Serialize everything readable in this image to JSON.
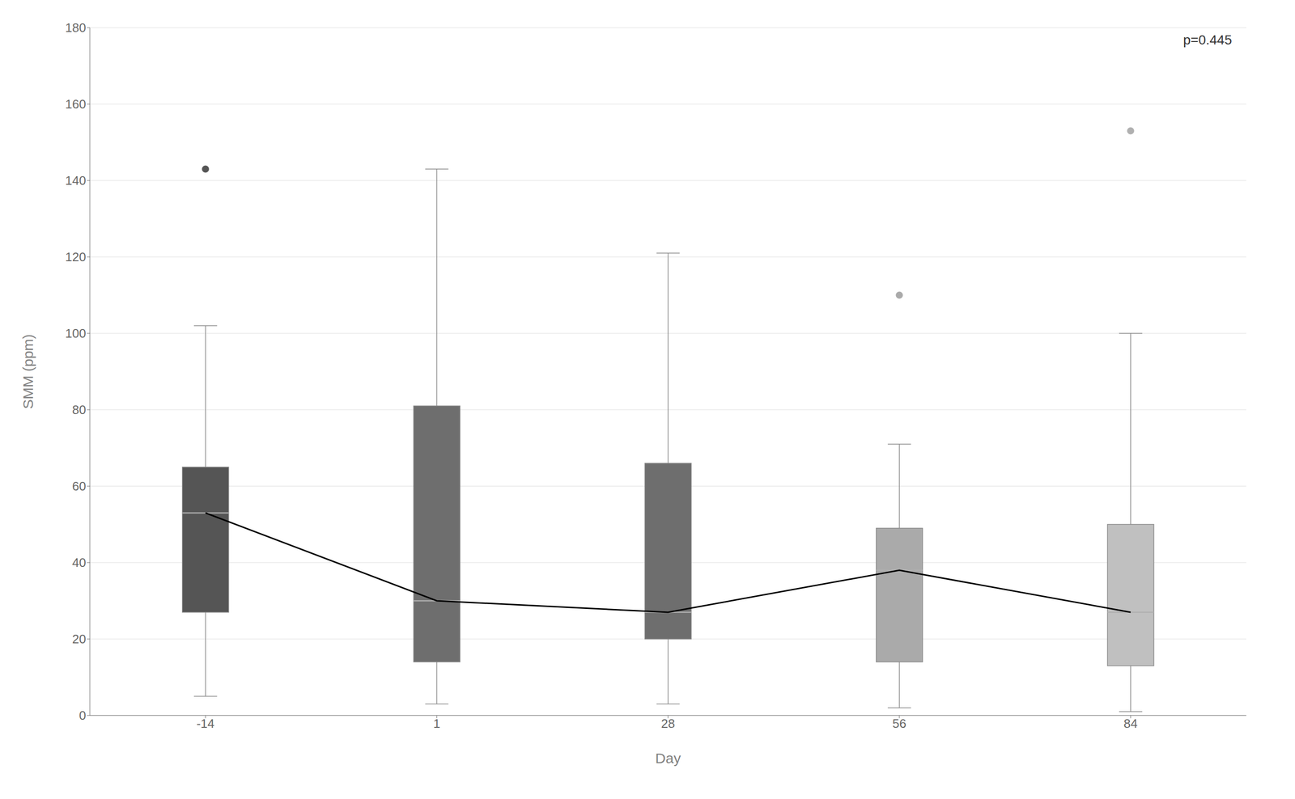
{
  "chart_data": {
    "type": "box",
    "xlabel": "Day",
    "ylabel": "SMM (ppm)",
    "annotation": "p=0.445",
    "categories": [
      "-14",
      "1",
      "28",
      "56",
      "84"
    ],
    "q1": [
      27,
      14,
      20,
      14,
      13
    ],
    "median": [
      53,
      30,
      27,
      38,
      27
    ],
    "q3": [
      65,
      81,
      66,
      49,
      50
    ],
    "whisker_low": [
      5,
      3,
      3,
      2,
      1
    ],
    "whisker_high": [
      102,
      143,
      121,
      71,
      100
    ],
    "outliers": [
      [
        143
      ],
      [],
      [],
      [
        110
      ],
      [
        153
      ]
    ],
    "colors": [
      "#555555",
      "#6e6e6e",
      "#6e6e6e",
      "#aaaaaa",
      "#c0c0c0"
    ],
    "outlier_colors": [
      "#555555",
      "#777777",
      "#888888",
      "#aaaaaa",
      "#b0b0b0"
    ],
    "mean_line": [
      53,
      30,
      27,
      38,
      27
    ],
    "mean_line_color": "#000000",
    "ylim": [
      0,
      180
    ],
    "yticks": [
      0,
      20,
      40,
      60,
      80,
      100,
      120,
      140,
      160,
      180
    ],
    "grid": true
  }
}
